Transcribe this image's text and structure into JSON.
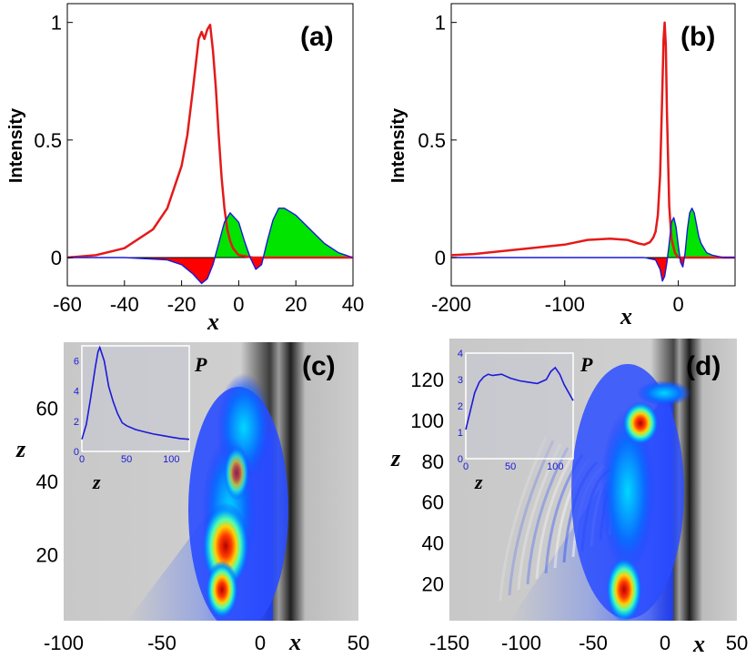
{
  "chart_data": [
    {
      "panel": "(a)",
      "type": "line",
      "xlabel": "x",
      "ylabel": "Intensity",
      "xlim": [
        -60,
        40
      ],
      "ylim": [
        -0.12,
        1.08
      ],
      "xticks": [
        "-60",
        "-40",
        "-20",
        "0",
        "20",
        "40"
      ],
      "yticks": [
        "0",
        "0.5",
        "1"
      ],
      "series": [
        {
          "color": "#e41a1a",
          "x": [
            -60,
            -50,
            -40,
            -30,
            -25,
            -20,
            -18,
            -16,
            -14,
            -13,
            -12,
            -11,
            -10,
            -9,
            -8,
            -7,
            -6,
            -5,
            -4,
            -3,
            -2,
            0,
            5,
            10,
            20,
            30,
            40
          ],
          "y": [
            0,
            0.01,
            0.04,
            0.12,
            0.21,
            0.39,
            0.52,
            0.72,
            0.93,
            0.96,
            0.93,
            0.97,
            0.99,
            0.88,
            0.72,
            0.52,
            0.34,
            0.21,
            0.12,
            0.07,
            0.04,
            0.01,
            0,
            0,
            0,
            0,
            0
          ]
        },
        {
          "color": "#1a1ad8",
          "fill_positive": "#00e400",
          "fill_negative": "#ff0000",
          "x": [
            -60,
            -40,
            -25,
            -20,
            -16,
            -13,
            -11,
            -9,
            -7,
            -5,
            -3,
            0,
            2,
            4,
            6,
            8,
            10,
            12,
            14,
            16,
            20,
            25,
            30,
            35,
            40
          ],
          "y": [
            0,
            0,
            -0.01,
            -0.03,
            -0.07,
            -0.11,
            -0.09,
            -0.03,
            0.06,
            0.15,
            0.19,
            0.15,
            0.07,
            0,
            -0.05,
            -0.03,
            0.07,
            0.16,
            0.21,
            0.21,
            0.18,
            0.12,
            0.06,
            0.02,
            0
          ]
        }
      ]
    },
    {
      "panel": "(b)",
      "type": "line",
      "xlabel": "x",
      "ylabel": "Intensity",
      "xlim": [
        -200,
        50
      ],
      "ylim": [
        -0.12,
        1.08
      ],
      "xticks": [
        "-200",
        "-100",
        "0"
      ],
      "yticks": [
        "0",
        "0.5",
        "1"
      ],
      "series": [
        {
          "color": "#e41a1a",
          "x": [
            -200,
            -180,
            -150,
            -120,
            -100,
            -80,
            -60,
            -45,
            -35,
            -30,
            -25,
            -22,
            -20,
            -18,
            -16,
            -14,
            -13,
            -12,
            -11,
            -10,
            -8,
            -6,
            -3,
            0,
            10,
            20,
            30,
            40,
            50
          ],
          "y": [
            0.01,
            0.015,
            0.03,
            0.045,
            0.055,
            0.075,
            0.08,
            0.075,
            0.06,
            0.055,
            0.065,
            0.085,
            0.11,
            0.18,
            0.35,
            0.72,
            0.93,
            1.0,
            0.9,
            0.62,
            0.22,
            0.08,
            0.02,
            0,
            0,
            0,
            0,
            0,
            0
          ]
        },
        {
          "color": "#1a1ad8",
          "fill_positive": "#00e400",
          "fill_negative": "#ff0000",
          "x": [
            -200,
            -30,
            -20,
            -16,
            -14,
            -12,
            -10,
            -8,
            -6,
            -4,
            -2,
            0,
            2,
            4,
            6,
            8,
            10,
            12,
            14,
            16,
            18,
            20,
            25,
            30,
            40,
            50
          ],
          "y": [
            0,
            0,
            -0.01,
            -0.05,
            -0.1,
            -0.08,
            -0.02,
            0.06,
            0.15,
            0.17,
            0.13,
            0.05,
            -0.02,
            -0.04,
            0.02,
            0.12,
            0.19,
            0.21,
            0.19,
            0.14,
            0.09,
            0.06,
            0.02,
            0.01,
            0,
            0
          ]
        }
      ]
    },
    {
      "panel": "(c)",
      "type": "heatmap",
      "xlabel": "x",
      "ylabel": "z",
      "xlim": [
        -100,
        50
      ],
      "ylim": [
        2,
        78
      ],
      "xticks": [
        "-100",
        "-50",
        "0",
        "50"
      ],
      "yticks": [
        "20",
        "40",
        "60"
      ],
      "inset": {
        "label": "P",
        "xlabel": "z",
        "xlim": [
          0,
          120
        ],
        "ylim": [
          0,
          7
        ],
        "xticks": [
          "0",
          "50",
          "100"
        ],
        "yticks": [
          "0",
          "2",
          "4",
          "6"
        ],
        "x": [
          0,
          5,
          10,
          15,
          18,
          20,
          25,
          30,
          35,
          40,
          45,
          50,
          60,
          70,
          80,
          90,
          100,
          110,
          120
        ],
        "y": [
          0.8,
          1.8,
          3.6,
          5.6,
          6.6,
          6.9,
          6.0,
          4.3,
          3.3,
          2.5,
          1.9,
          1.7,
          1.45,
          1.3,
          1.15,
          1.05,
          0.95,
          0.85,
          0.8
        ]
      }
    },
    {
      "panel": "(d)",
      "type": "heatmap",
      "xlabel": "x",
      "ylabel": "z",
      "xlim": [
        -150,
        50
      ],
      "ylim": [
        2,
        140
      ],
      "xticks": [
        "-150",
        "-100",
        "-50",
        "0",
        "50"
      ],
      "yticks": [
        "20",
        "40",
        "60",
        "80",
        "100",
        "120"
      ],
      "inset": {
        "label": "P",
        "xlabel": "z",
        "xlim": [
          0,
          120
        ],
        "ylim": [
          0,
          4
        ],
        "xticks": [
          "0",
          "50",
          "100"
        ],
        "yticks": [
          "0",
          "1",
          "2",
          "3",
          "4"
        ],
        "x": [
          0,
          5,
          10,
          15,
          20,
          25,
          30,
          40,
          50,
          60,
          70,
          80,
          90,
          95,
          100,
          105,
          110,
          120
        ],
        "y": [
          1.1,
          1.8,
          2.5,
          2.9,
          3.1,
          3.2,
          3.15,
          3.2,
          3.05,
          2.95,
          2.9,
          2.85,
          3.0,
          3.3,
          3.45,
          3.2,
          2.8,
          2.2
        ]
      }
    }
  ]
}
